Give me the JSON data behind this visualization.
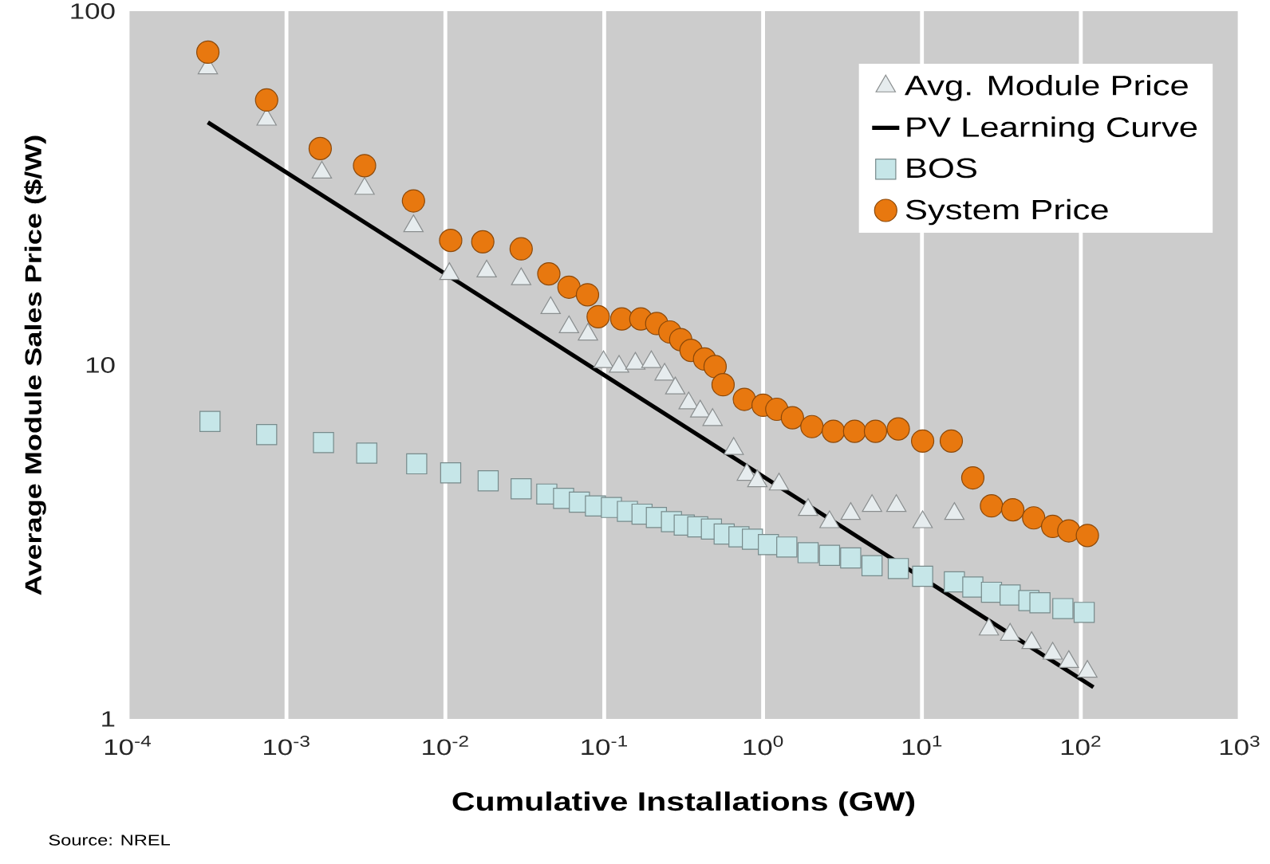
{
  "chart_data": {
    "type": "scatter",
    "xlabel": "Cumulative Installations (GW)",
    "ylabel": "Average Module Sales Price ($/W)",
    "annotations": [
      "Source: NREL"
    ],
    "log": "xy",
    "grid": "x",
    "legend": "top right",
    "xlim": [
      0.0001,
      1000
    ],
    "ylim": [
      1,
      100
    ],
    "xticks": [
      {
        "value": 0.0001,
        "label": "10$^{-4}$"
      },
      {
        "value": 0.001,
        "label": "10$^{-3}$"
      },
      {
        "value": 0.01,
        "label": "10$^{-2}$"
      },
      {
        "value": 0.1,
        "label": "10$^{-1}$"
      },
      {
        "value": 1,
        "label": "10$^{0}$"
      },
      {
        "value": 10,
        "label": "10$^{1}$"
      },
      {
        "value": 100,
        "label": "10$^{2}$"
      },
      {
        "value": 1000,
        "label": "10$^{3}$"
      }
    ],
    "yticks": [
      1,
      10,
      100
    ],
    "series": [
      {
        "name": "Avg. Module Price",
        "marker": "triangle",
        "color": "#e6ecee",
        "x": [
          0.00032,
          0.00075,
          0.00167,
          0.0031,
          0.0063,
          0.0106,
          0.0182,
          0.03,
          0.046,
          0.06,
          0.079,
          0.099,
          0.124,
          0.157,
          0.198,
          0.24,
          0.28,
          0.34,
          0.402,
          0.481,
          0.653,
          0.79,
          0.92,
          1.26,
          1.92,
          2.62,
          3.56,
          4.85,
          6.9,
          10.1,
          16.0,
          26.4,
          35.9,
          49,
          66.5,
          84,
          110
        ],
        "values": [
          69,
          49.4,
          35,
          31.5,
          24.7,
          18.1,
          18.4,
          17.5,
          14.5,
          12.8,
          12.2,
          10.2,
          9.9,
          10.1,
          10.2,
          9.4,
          8.6,
          7.8,
          7.4,
          7.0,
          5.8,
          4.9,
          4.7,
          4.6,
          3.9,
          3.6,
          3.8,
          4.0,
          4.0,
          3.6,
          3.8,
          1.79,
          1.73,
          1.64,
          1.53,
          1.45,
          1.36
        ]
      },
      {
        "name": "PV Learning Curve",
        "type": "line",
        "marker": "none",
        "color": "#000000",
        "x": [
          0.00032,
          120
        ],
        "values": [
          48.5,
          1.23
        ]
      },
      {
        "name": "BOS",
        "marker": "square",
        "color": "#c6e6e8",
        "x": [
          0.00033,
          0.00075,
          0.00171,
          0.0032,
          0.0066,
          0.0108,
          0.0186,
          0.03,
          0.0435,
          0.0555,
          0.0698,
          0.0881,
          0.111,
          0.14,
          0.173,
          0.213,
          0.265,
          0.319,
          0.388,
          0.473,
          0.569,
          0.705,
          0.857,
          1.08,
          1.41,
          1.92,
          2.62,
          3.56,
          4.85,
          7.1,
          10.1,
          16.0,
          20.9,
          27.4,
          35.9,
          47.1,
          55.3,
          77.1,
          105
        ],
        "values": [
          6.93,
          6.36,
          6.04,
          5.64,
          5.26,
          4.96,
          4.71,
          4.47,
          4.32,
          4.2,
          4.1,
          4.0,
          3.96,
          3.86,
          3.79,
          3.71,
          3.61,
          3.53,
          3.49,
          3.44,
          3.33,
          3.27,
          3.22,
          3.11,
          3.06,
          2.95,
          2.9,
          2.85,
          2.71,
          2.66,
          2.53,
          2.44,
          2.36,
          2.28,
          2.24,
          2.16,
          2.13,
          2.05,
          2.0
        ]
      },
      {
        "name": "System Price",
        "marker": "circle",
        "color": "#e8780f",
        "x": [
          0.00032,
          0.00075,
          0.00163,
          0.0031,
          0.0063,
          0.0108,
          0.0172,
          0.03,
          0.0448,
          0.06,
          0.0785,
          0.0916,
          0.129,
          0.17,
          0.214,
          0.259,
          0.303,
          0.352,
          0.428,
          0.499,
          0.56,
          0.762,
          1.0,
          1.22,
          1.53,
          2.03,
          2.77,
          3.77,
          5.1,
          7.1,
          10.1,
          15.3,
          20.9,
          27.4,
          37.3,
          50.5,
          66.5,
          84,
          110
        ],
        "values": [
          76.6,
          56.1,
          40.9,
          36.6,
          29.1,
          22.5,
          22.3,
          21.3,
          18.1,
          16.6,
          15.8,
          13.7,
          13.5,
          13.5,
          13.1,
          12.4,
          11.8,
          11.0,
          10.4,
          9.9,
          8.8,
          8.0,
          7.7,
          7.5,
          7.1,
          6.7,
          6.5,
          6.5,
          6.5,
          6.6,
          6.1,
          6.1,
          4.8,
          4.0,
          3.9,
          3.7,
          3.5,
          3.4,
          3.3
        ]
      }
    ]
  }
}
